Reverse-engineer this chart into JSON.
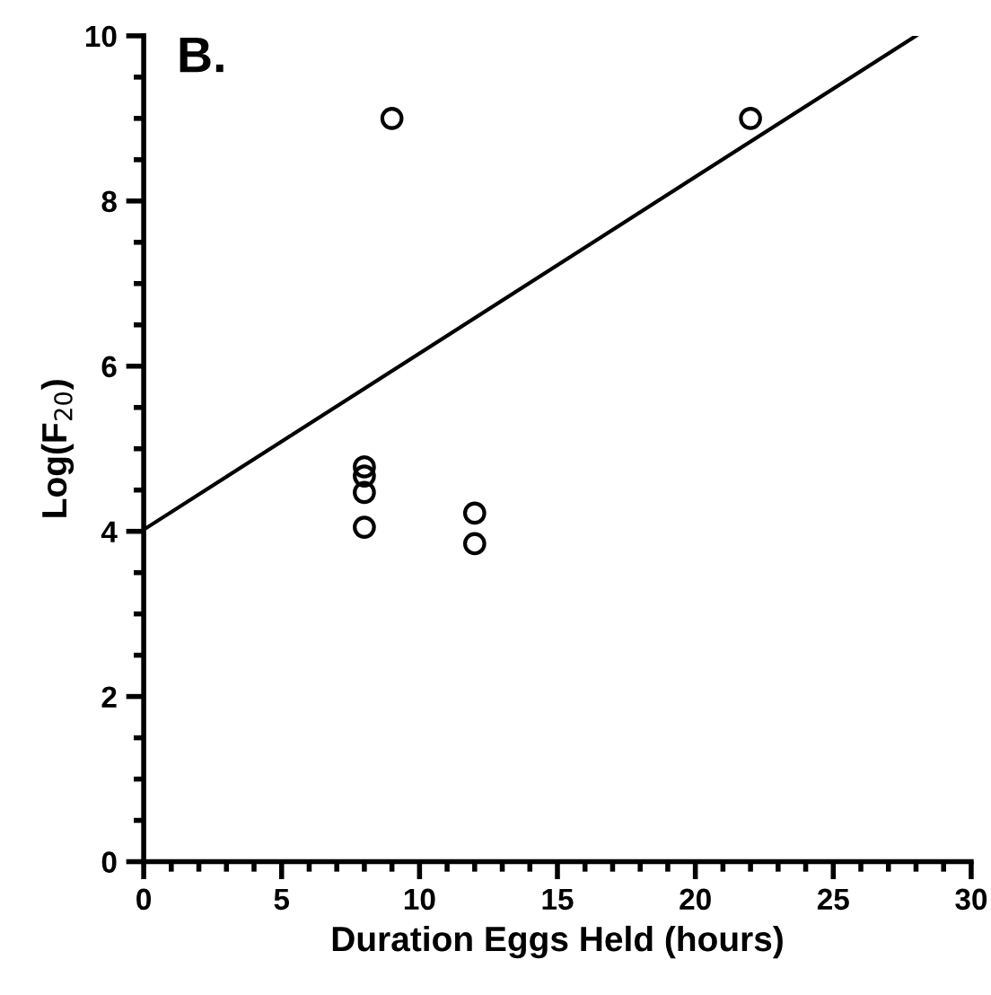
{
  "chart_data": {
    "type": "scatter",
    "title": "B.",
    "xlabel": "Duration Eggs Held (hours)",
    "ylabel": "Log(F$_{20}$)",
    "xlim": [
      0,
      30
    ],
    "xticks": [
      0,
      5,
      10,
      15,
      20,
      25,
      30
    ],
    "ylim": [
      0,
      10
    ],
    "yticks": [
      0,
      2,
      4,
      6,
      8,
      10
    ],
    "grid": false,
    "legend": false,
    "marker": "circle",
    "series": [
      {
        "color": "#000000",
        "x": [
          8,
          8,
          8,
          8,
          9,
          12,
          12,
          22
        ],
        "values": [
          4.78,
          4.67,
          4.47,
          4.05,
          9.0,
          4.22,
          3.85,
          9.0
        ]
      },
      {
        "type": "line",
        "color": "#000000",
        "x": [
          0,
          28
        ],
        "values": [
          4.02,
          10
        ],
        "marker": "none",
        "line_style": "solid"
      }
    ]
  }
}
